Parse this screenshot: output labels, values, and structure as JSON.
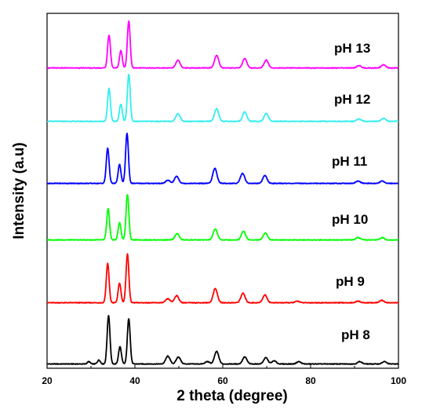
{
  "chart_data": {
    "type": "line",
    "xlabel": "2 theta (degree)",
    "ylabel": "Intensity (a.u)",
    "xlim": [
      20,
      100
    ],
    "xticks": [
      "20",
      "40",
      "60",
      "80",
      "100"
    ],
    "yticks_shown": false,
    "stacked_offset_traces": true,
    "grid": false,
    "series": [
      {
        "name": "pH 8",
        "color": "#000000",
        "peaks": [
          {
            "x": 29.5,
            "y": 3
          },
          {
            "x": 31.8,
            "y": 5
          },
          {
            "x": 34.0,
            "y": 62
          },
          {
            "x": 36.6,
            "y": 22
          },
          {
            "x": 38.6,
            "y": 58
          },
          {
            "x": 47.5,
            "y": 10
          },
          {
            "x": 49.9,
            "y": 9
          },
          {
            "x": 56.5,
            "y": 3
          },
          {
            "x": 58.6,
            "y": 16
          },
          {
            "x": 65.0,
            "y": 9
          },
          {
            "x": 69.8,
            "y": 8
          },
          {
            "x": 71.7,
            "y": 4
          },
          {
            "x": 77.3,
            "y": 3
          },
          {
            "x": 91.2,
            "y": 3
          },
          {
            "x": 96.8,
            "y": 3
          }
        ]
      },
      {
        "name": "pH 9",
        "color": "#ff0000",
        "peaks": [
          {
            "x": 33.8,
            "y": 50
          },
          {
            "x": 36.5,
            "y": 25
          },
          {
            "x": 38.3,
            "y": 62
          },
          {
            "x": 47.5,
            "y": 5
          },
          {
            "x": 49.5,
            "y": 9
          },
          {
            "x": 58.3,
            "y": 18
          },
          {
            "x": 64.6,
            "y": 12
          },
          {
            "x": 69.6,
            "y": 10
          },
          {
            "x": 77.0,
            "y": 2
          },
          {
            "x": 90.8,
            "y": 2
          },
          {
            "x": 96.2,
            "y": 3
          }
        ]
      },
      {
        "name": "pH 10",
        "color": "#00ff00",
        "peaks": [
          {
            "x": 33.9,
            "y": 40
          },
          {
            "x": 36.5,
            "y": 22
          },
          {
            "x": 38.3,
            "y": 58
          },
          {
            "x": 49.6,
            "y": 8
          },
          {
            "x": 58.3,
            "y": 14
          },
          {
            "x": 64.7,
            "y": 11
          },
          {
            "x": 69.7,
            "y": 9
          },
          {
            "x": 90.8,
            "y": 3
          },
          {
            "x": 96.3,
            "y": 3
          }
        ]
      },
      {
        "name": "pH 11",
        "color": "#0000ff",
        "peaks": [
          {
            "x": 33.8,
            "y": 45
          },
          {
            "x": 36.5,
            "y": 24
          },
          {
            "x": 38.2,
            "y": 64
          },
          {
            "x": 47.5,
            "y": 4
          },
          {
            "x": 49.5,
            "y": 9
          },
          {
            "x": 58.2,
            "y": 19
          },
          {
            "x": 64.5,
            "y": 13
          },
          {
            "x": 69.6,
            "y": 10
          },
          {
            "x": 90.8,
            "y": 3
          },
          {
            "x": 96.3,
            "y": 3
          }
        ]
      },
      {
        "name": "pH 12",
        "color": "#33eeee",
        "peaks": [
          {
            "x": 34.1,
            "y": 42
          },
          {
            "x": 36.8,
            "y": 22
          },
          {
            "x": 38.6,
            "y": 60
          },
          {
            "x": 49.8,
            "y": 10
          },
          {
            "x": 58.6,
            "y": 16
          },
          {
            "x": 65.0,
            "y": 12
          },
          {
            "x": 69.9,
            "y": 10
          },
          {
            "x": 91.0,
            "y": 3
          },
          {
            "x": 96.6,
            "y": 4
          }
        ]
      },
      {
        "name": "pH 13",
        "color": "#ff00ff",
        "peaks": [
          {
            "x": 34.1,
            "y": 42
          },
          {
            "x": 36.8,
            "y": 22
          },
          {
            "x": 38.6,
            "y": 60
          },
          {
            "x": 49.8,
            "y": 10
          },
          {
            "x": 58.6,
            "y": 16
          },
          {
            "x": 65.0,
            "y": 12
          },
          {
            "x": 69.9,
            "y": 10
          },
          {
            "x": 91.0,
            "y": 3
          },
          {
            "x": 96.6,
            "y": 4
          }
        ]
      }
    ]
  }
}
